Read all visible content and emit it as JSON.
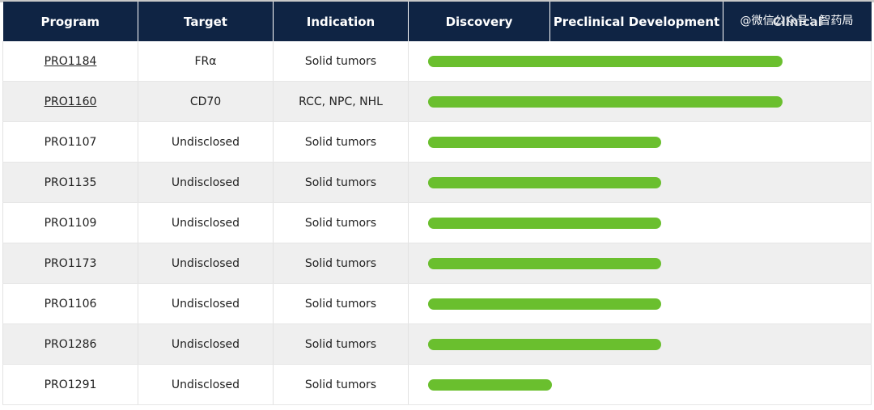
{
  "headers": {
    "program": "Program",
    "target": "Target",
    "indication": "Indication",
    "discovery": "Discovery",
    "preclinical": "Preclinical Development",
    "clinical": "Clinical",
    "watermark": "@微信公众号：智药局"
  },
  "colors": {
    "header_bg": "#0f2444",
    "bar": "#6abf2e",
    "row_alt": "#efefef"
  },
  "rows": [
    {
      "program": "PRO1184",
      "target": "FRα",
      "indication": "Solid tumors",
      "linked": true,
      "progress": 0.8
    },
    {
      "program": "PRO1160",
      "target": "CD70",
      "indication": "RCC, NPC, NHL",
      "linked": true,
      "progress": 0.8
    },
    {
      "program": "PRO1107",
      "target": "Undisclosed",
      "indication": "Solid tumors",
      "linked": false,
      "progress": 0.525
    },
    {
      "program": "PRO1135",
      "target": "Undisclosed",
      "indication": "Solid tumors",
      "linked": false,
      "progress": 0.525
    },
    {
      "program": "PRO1109",
      "target": "Undisclosed",
      "indication": "Solid tumors",
      "linked": false,
      "progress": 0.525
    },
    {
      "program": "PRO1173",
      "target": "Undisclosed",
      "indication": "Solid tumors",
      "linked": false,
      "progress": 0.525
    },
    {
      "program": "PRO1106",
      "target": "Undisclosed",
      "indication": "Solid tumors",
      "linked": false,
      "progress": 0.525
    },
    {
      "program": "PRO1286",
      "target": "Undisclosed",
      "indication": "Solid tumors",
      "linked": false,
      "progress": 0.525
    },
    {
      "program": "PRO1291",
      "target": "Undisclosed",
      "indication": "Solid tumors",
      "linked": false,
      "progress": 0.28
    }
  ]
}
